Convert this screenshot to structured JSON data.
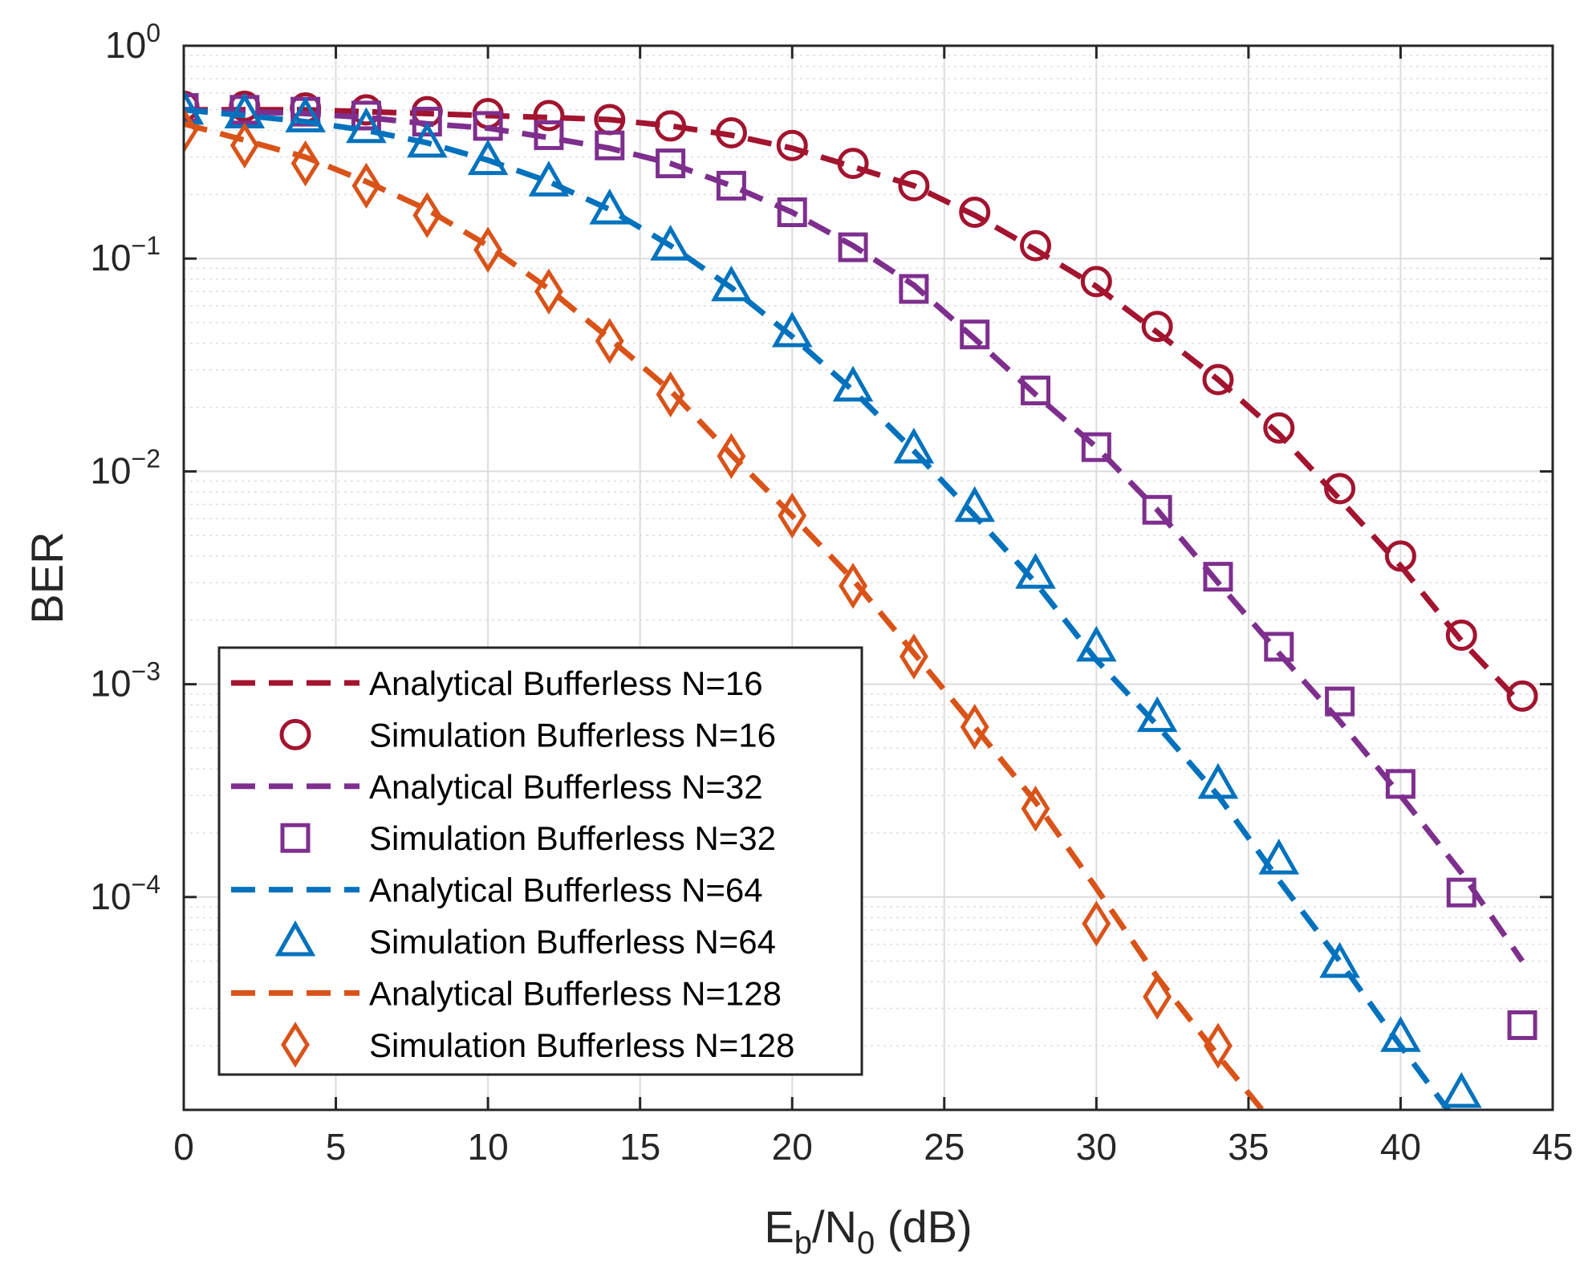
{
  "chart_data": {
    "type": "line",
    "title": "",
    "xlabel": {
      "main": "E",
      "sub1": "b",
      "mid": "/N",
      "sub2": "0",
      "tail": " (dB)"
    },
    "ylabel": "BER",
    "xlim": [
      0,
      45
    ],
    "ylim": [
      1e-05,
      1
    ],
    "yscale": "log",
    "grid": true,
    "minor_grid": true,
    "legend_position": "bottom-left",
    "x_ticks": [
      "0",
      "5",
      "10",
      "15",
      "20",
      "25",
      "30",
      "35",
      "40",
      "45"
    ],
    "x_tick_values": [
      0,
      5,
      10,
      15,
      20,
      25,
      30,
      35,
      40,
      45
    ],
    "y_ticks": [
      {
        "base": "10",
        "exp": "0",
        "value": 1
      },
      {
        "base": "10",
        "exp": "−1",
        "value": 0.1
      },
      {
        "base": "10",
        "exp": "−2",
        "value": 0.01
      },
      {
        "base": "10",
        "exp": "−3",
        "value": 0.001
      },
      {
        "base": "10",
        "exp": "−4",
        "value": 0.0001
      }
    ],
    "series": [
      {
        "name": "Analytical Bufferless N=16",
        "kind": "line",
        "color": "#a2142f",
        "x": [
          0,
          2,
          4,
          6,
          8,
          10,
          12,
          14,
          16,
          18,
          20,
          22,
          24,
          26,
          28,
          30,
          32,
          34,
          36,
          38,
          40,
          42,
          44
        ],
        "y": [
          0.5,
          0.5,
          0.5,
          0.49,
          0.48,
          0.47,
          0.46,
          0.45,
          0.42,
          0.38,
          0.33,
          0.27,
          0.22,
          0.16,
          0.11,
          0.074,
          0.045,
          0.027,
          0.015,
          0.0074,
          0.0036,
          0.0016,
          0.0008
        ]
      },
      {
        "name": "Simulation Bufferless N=16",
        "kind": "marker",
        "marker": "circle",
        "color": "#a2142f",
        "x": [
          0,
          2,
          4,
          6,
          8,
          10,
          12,
          14,
          16,
          18,
          20,
          22,
          24,
          26,
          28,
          30,
          32,
          34,
          36,
          38,
          40,
          42,
          44
        ],
        "y": [
          0.52,
          0.52,
          0.51,
          0.5,
          0.49,
          0.48,
          0.47,
          0.45,
          0.42,
          0.39,
          0.34,
          0.28,
          0.22,
          0.165,
          0.115,
          0.078,
          0.048,
          0.027,
          0.016,
          0.0083,
          0.004,
          0.0017,
          0.00088
        ]
      },
      {
        "name": "Analytical Bufferless N=32",
        "kind": "line",
        "color": "#7e2f8e",
        "x": [
          0,
          2,
          4,
          6,
          8,
          10,
          12,
          14,
          16,
          18,
          20,
          22,
          24,
          26,
          28,
          30,
          32,
          34,
          36,
          38,
          40,
          42,
          44
        ],
        "y": [
          0.5,
          0.49,
          0.48,
          0.46,
          0.43,
          0.41,
          0.37,
          0.33,
          0.28,
          0.22,
          0.165,
          0.115,
          0.075,
          0.042,
          0.023,
          0.013,
          0.0066,
          0.003,
          0.0014,
          0.00067,
          0.0003,
          0.00013,
          5e-05
        ]
      },
      {
        "name": "Simulation Bufferless N=32",
        "kind": "marker",
        "marker": "square",
        "color": "#7e2f8e",
        "x": [
          0,
          2,
          4,
          6,
          8,
          10,
          12,
          14,
          16,
          18,
          20,
          22,
          24,
          26,
          28,
          30,
          32,
          34,
          36,
          38,
          40,
          42,
          44
        ],
        "y": [
          0.51,
          0.5,
          0.49,
          0.47,
          0.44,
          0.42,
          0.38,
          0.34,
          0.28,
          0.22,
          0.165,
          0.113,
          0.072,
          0.044,
          0.024,
          0.013,
          0.0066,
          0.0032,
          0.0015,
          0.00083,
          0.00034,
          0.000105,
          2.5e-05
        ]
      },
      {
        "name": "Analytical Bufferless N=64",
        "kind": "line",
        "color": "#0072bd",
        "x": [
          0,
          2,
          4,
          6,
          8,
          10,
          12,
          14,
          16,
          18,
          20,
          22,
          24,
          26,
          28,
          30,
          32,
          34,
          36,
          38,
          40,
          41.6
        ],
        "y": [
          0.5,
          0.47,
          0.44,
          0.4,
          0.35,
          0.29,
          0.23,
          0.17,
          0.115,
          0.073,
          0.043,
          0.024,
          0.0125,
          0.0062,
          0.003,
          0.0013,
          0.00064,
          0.0003,
          0.00012,
          5e-05,
          2e-05,
          9.8e-06
        ]
      },
      {
        "name": "Simulation Bufferless N=64",
        "kind": "marker",
        "marker": "triangle",
        "color": "#0072bd",
        "x": [
          0,
          2,
          4,
          6,
          8,
          10,
          12,
          14,
          16,
          18,
          20,
          22,
          24,
          26,
          28,
          30,
          32,
          34,
          36,
          38,
          40,
          42
        ],
        "y": [
          0.5,
          0.48,
          0.46,
          0.41,
          0.35,
          0.29,
          0.23,
          0.17,
          0.115,
          0.074,
          0.045,
          0.025,
          0.0128,
          0.0068,
          0.0033,
          0.0015,
          0.0007,
          0.00034,
          0.00015,
          4.9e-05,
          2.2e-05,
          1.2e-05
        ]
      },
      {
        "name": "Analytical Bufferless N=128",
        "kind": "line",
        "color": "#d95319",
        "x": [
          0,
          2,
          4,
          6,
          8,
          10,
          12,
          14,
          16,
          18,
          20,
          22,
          24,
          26,
          28,
          30,
          32,
          34,
          35.5
        ],
        "y": [
          0.43,
          0.36,
          0.3,
          0.23,
          0.17,
          0.115,
          0.072,
          0.042,
          0.024,
          0.012,
          0.0062,
          0.0031,
          0.0014,
          0.00063,
          0.00028,
          0.00011,
          4.2e-05,
          1.8e-05,
          9.8e-06
        ]
      },
      {
        "name": "Simulation Bufferless N=128",
        "kind": "marker",
        "marker": "diamond",
        "color": "#d95319",
        "x": [
          0,
          2,
          4,
          6,
          8,
          10,
          12,
          14,
          16,
          18,
          20,
          22,
          24,
          26,
          28,
          30,
          32,
          34
        ],
        "y": [
          0.4,
          0.34,
          0.28,
          0.22,
          0.16,
          0.11,
          0.07,
          0.041,
          0.023,
          0.0118,
          0.0062,
          0.0029,
          0.00135,
          0.00063,
          0.00026,
          7.5e-05,
          3.4e-05,
          2e-05
        ]
      }
    ]
  }
}
